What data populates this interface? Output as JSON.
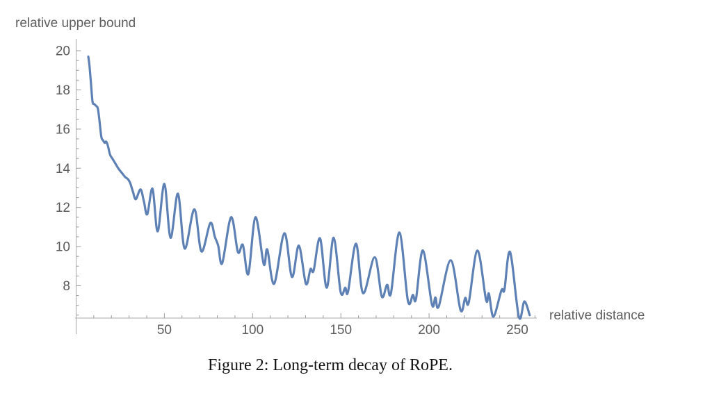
{
  "figure": {
    "caption": "Figure 2: Long-term decay of RoPE."
  },
  "chart_data": {
    "type": "line",
    "title": "",
    "xlabel": "relative distance",
    "ylabel": "relative upper bound",
    "xlim": [
      0,
      260
    ],
    "ylim": [
      6.35,
      20.5
    ],
    "x_major_ticks": [
      50,
      100,
      150,
      200,
      250
    ],
    "x_minor_tick_step": 10,
    "x_minor_tick_range": [
      10,
      260
    ],
    "y_major_ticks": [
      8,
      10,
      12,
      14,
      16,
      18,
      20
    ],
    "y_unlabeled_major_ticks": [
      6
    ],
    "y_minor_tick_step": 0.5,
    "grid": false,
    "legend_position": "none",
    "colors": {
      "line": "#5E81B5",
      "axis": "#a8a8a8",
      "tick": "#9d9d9d",
      "tick_label": "#5b5b5b",
      "axis_label": "#5e5e5e",
      "background": "#ffffff",
      "caption": "#121212"
    },
    "series": [
      {
        "name": "relative upper bound",
        "points": [
          [
            6.9,
            19.7
          ],
          [
            7.6,
            19.2
          ],
          [
            8.4,
            18.35
          ],
          [
            9.3,
            17.4
          ],
          [
            10.2,
            17.28
          ],
          [
            11.4,
            17.18
          ],
          [
            12.3,
            17.05
          ],
          [
            13.2,
            16.45
          ],
          [
            14.3,
            15.6
          ],
          [
            15.3,
            15.42
          ],
          [
            16.2,
            15.3
          ],
          [
            17.0,
            15.36
          ],
          [
            17.9,
            15.18
          ],
          [
            19.2,
            14.7
          ],
          [
            20.5,
            14.5
          ],
          [
            22,
            14.28
          ],
          [
            24,
            13.98
          ],
          [
            26,
            13.75
          ],
          [
            27.8,
            13.55
          ],
          [
            29.3,
            13.45
          ],
          [
            30.6,
            13.25
          ],
          [
            32.2,
            12.8
          ],
          [
            33.8,
            12.42
          ],
          [
            36.5,
            12.92
          ],
          [
            38.4,
            12.3
          ],
          [
            40.3,
            11.65
          ],
          [
            43.3,
            12.95
          ],
          [
            46.2,
            10.78
          ],
          [
            50,
            13.2
          ],
          [
            53.5,
            10.45
          ],
          [
            57.7,
            12.7
          ],
          [
            61.5,
            9.9
          ],
          [
            67,
            11.9
          ],
          [
            71,
            9.75
          ],
          [
            76,
            11.2
          ],
          [
            78.6,
            10.5
          ],
          [
            80.5,
            10.05
          ],
          [
            82.8,
            9.15
          ],
          [
            87.8,
            11.5
          ],
          [
            91.7,
            9.72
          ],
          [
            94.5,
            10.08
          ],
          [
            97.6,
            8.6
          ],
          [
            101.6,
            11.5
          ],
          [
            106.3,
            9.1
          ],
          [
            108.3,
            9.85
          ],
          [
            112.2,
            8.1
          ],
          [
            118,
            10.68
          ],
          [
            122.3,
            8.45
          ],
          [
            126.2,
            10.05
          ],
          [
            130.2,
            8.1
          ],
          [
            132.8,
            8.85
          ],
          [
            134.6,
            8.78
          ],
          [
            138.2,
            10.42
          ],
          [
            142,
            7.9
          ],
          [
            145.9,
            10.45
          ],
          [
            149.9,
            7.68
          ],
          [
            152.5,
            7.9
          ],
          [
            154.1,
            7.7
          ],
          [
            158.6,
            10.15
          ],
          [
            162.6,
            7.62
          ],
          [
            169.2,
            9.45
          ],
          [
            173.2,
            7.45
          ],
          [
            176.2,
            8.05
          ],
          [
            178.4,
            7.62
          ],
          [
            183.2,
            10.72
          ],
          [
            188,
            7.24
          ],
          [
            190.8,
            7.53
          ],
          [
            192.6,
            7.33
          ],
          [
            196.5,
            9.8
          ],
          [
            201.6,
            7.05
          ],
          [
            203.6,
            7.4
          ],
          [
            205.5,
            6.95
          ],
          [
            212.3,
            9.3
          ],
          [
            217.8,
            6.76
          ],
          [
            220.5,
            7.38
          ],
          [
            222.5,
            7.15
          ],
          [
            227.4,
            9.8
          ],
          [
            232.3,
            7.27
          ],
          [
            233.9,
            7.6
          ],
          [
            236.5,
            6.42
          ],
          [
            241,
            7.77
          ],
          [
            242.7,
            7.8
          ],
          [
            245.9,
            9.72
          ],
          [
            250.9,
            6.4
          ],
          [
            254,
            7.2
          ],
          [
            257,
            6.5
          ]
        ]
      }
    ]
  }
}
